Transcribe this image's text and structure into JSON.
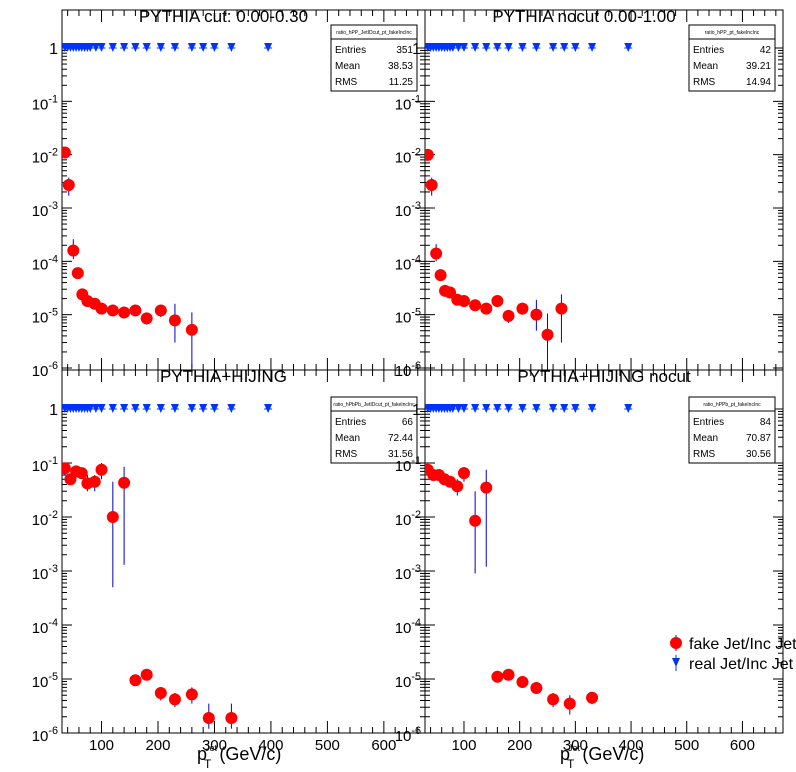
{
  "chart_data": [
    {
      "type": "scatter",
      "title": "PYTHIA cut: 0.00-0.30",
      "ylog": true,
      "yticks": [
        "10^-6",
        "10^-5",
        "10^-4",
        "10^-3",
        "10^-2",
        "10^-1",
        "1"
      ],
      "stats": {
        "name": "ratio_hPP_JetIDcut_pt_fakeIncInc",
        "rows": [
          [
            "Entries",
            "351"
          ],
          [
            "Mean",
            "38.53"
          ],
          [
            "RMS",
            "11.25"
          ]
        ]
      },
      "series": [
        {
          "key": "fake",
          "x": [
            35,
            42,
            50,
            58,
            66,
            75,
            88,
            100,
            120,
            140,
            160,
            180,
            205,
            230,
            260
          ],
          "y": [
            0.011,
            0.0027,
            0.00016,
            6e-05,
            2.4e-05,
            1.8e-05,
            1.6e-05,
            1.3e-05,
            1.2e-05,
            1.1e-05,
            1.2e-05,
            8.5e-06,
            1.2e-05,
            7.8e-06,
            5.2e-06
          ],
          "elo": [
            0.0105,
            0.0017,
            0.00011,
            5e-05,
            2e-05,
            1.6e-05,
            1.4e-05,
            1.1e-05,
            1e-05,
            9.5e-06,
            1e-05,
            6.5e-06,
            9e-06,
            3e-06,
            1e-06
          ],
          "ehi": [
            0.0115,
            0.0037,
            0.00026,
            7e-05,
            2.8e-05,
            2.1e-05,
            1.8e-05,
            1.5e-05,
            1.4e-05,
            1.3e-05,
            1.4e-05,
            1.05e-05,
            1.5e-05,
            1.6e-05,
            1.1e-05
          ]
        },
        {
          "key": "real",
          "x": [
            35,
            40,
            45,
            50,
            55,
            60,
            65,
            70,
            75,
            80,
            90,
            100,
            120,
            140,
            160,
            180,
            205,
            230,
            260,
            280,
            300,
            330,
            395
          ],
          "y": [
            1,
            1,
            1,
            1,
            1,
            1,
            1,
            1,
            1,
            1,
            1,
            1,
            1,
            1,
            1,
            1,
            1,
            1,
            1,
            1,
            1,
            1,
            1
          ]
        }
      ]
    },
    {
      "type": "scatter",
      "title": "PYTHIA nocut 0.00-1.00",
      "ylog": true,
      "yticks": [
        "10^-6",
        "10^-5",
        "10^-4",
        "10^-3",
        "10^-2",
        "10^-1",
        "1"
      ],
      "stats": {
        "name": "ratio_hPP_pt_fakeIncInc",
        "rows": [
          [
            "Entries",
            "42"
          ],
          [
            "Mean",
            "39.21"
          ],
          [
            "RMS",
            "14.94"
          ]
        ]
      },
      "series": [
        {
          "key": "fake",
          "x": [
            35,
            42,
            50,
            58,
            66,
            75,
            88,
            100,
            120,
            140,
            160,
            180,
            205,
            230,
            250,
            275
          ],
          "y": [
            0.0099,
            0.0027,
            0.00014,
            5.5e-05,
            2.8e-05,
            2.6e-05,
            1.9e-05,
            1.8e-05,
            1.5e-05,
            1.3e-05,
            1.8e-05,
            9.5e-06,
            1.3e-05,
            1e-05,
            4.2e-06,
            1.3e-05
          ],
          "elo": [
            0.0094,
            0.0017,
            0.0001,
            4.5e-05,
            2.4e-05,
            2.2e-05,
            1.6e-05,
            1.5e-05,
            1.2e-05,
            1.1e-05,
            1.5e-05,
            7e-06,
            1e-05,
            5e-06,
            8e-07,
            3e-06
          ],
          "ehi": [
            0.0104,
            0.0037,
            0.00021,
            6.8e-05,
            3.2e-05,
            3e-05,
            2.2e-05,
            2.1e-05,
            1.8e-05,
            1.5e-05,
            2.1e-05,
            1.2e-05,
            1.6e-05,
            1.9e-05,
            1.05e-05,
            2.4e-05
          ]
        },
        {
          "key": "real",
          "x": [
            35,
            40,
            45,
            50,
            55,
            60,
            65,
            70,
            75,
            80,
            90,
            100,
            120,
            140,
            160,
            180,
            205,
            230,
            260,
            280,
            300,
            330,
            395
          ],
          "y": [
            1,
            1,
            1,
            1,
            1,
            1,
            1,
            1,
            1,
            1,
            1,
            1,
            1,
            1,
            1,
            1,
            1,
            1,
            1,
            1,
            1,
            1,
            1
          ]
        }
      ]
    },
    {
      "type": "scatter",
      "title": "PYTHIA+HIJING",
      "ylog": true,
      "xlabel": "p_T^{Jet} (GeV/c)",
      "xticks": [
        "100",
        "200",
        "300",
        "400",
        "500",
        "600"
      ],
      "yticks": [
        "10^-6",
        "10^-5",
        "10^-4",
        "10^-3",
        "10^-2",
        "10^-1",
        "1"
      ],
      "stats": {
        "name": "ratio_hPbPb_JetIDcut_pt_fakeIncInc",
        "rows": [
          [
            "Entries",
            "66"
          ],
          [
            "Mean",
            "72.44"
          ],
          [
            "RMS",
            "31.56"
          ]
        ]
      },
      "series": [
        {
          "key": "fake",
          "x": [
            35,
            45,
            55,
            65,
            75,
            88,
            100,
            120,
            140,
            160,
            180,
            205,
            230,
            260,
            290,
            330
          ],
          "y": [
            0.08,
            0.05,
            0.07,
            0.065,
            0.042,
            0.045,
            0.075,
            0.01,
            0.043,
            9.5e-06,
            1.2e-05,
            5.5e-06,
            4.2e-06,
            5.2e-06,
            1.9e-06,
            1.9e-06
          ],
          "elo": [
            0.06,
            0.042,
            0.055,
            0.055,
            0.03,
            0.03,
            0.05,
            0.0005,
            0.0013,
            8.5e-06,
            1.05e-05,
            4e-06,
            3e-06,
            3.5e-06,
            1.2e-06,
            1.2e-06
          ],
          "ehi": [
            0.1,
            0.06,
            0.09,
            0.08,
            0.06,
            0.06,
            0.1,
            0.045,
            0.085,
            1.05e-05,
            1.35e-05,
            7e-06,
            5.5e-06,
            7e-06,
            3.5e-06,
            3.5e-06
          ]
        },
        {
          "key": "real",
          "x": [
            35,
            40,
            45,
            50,
            55,
            60,
            65,
            70,
            75,
            80,
            90,
            100,
            120,
            140,
            160,
            180,
            205,
            230,
            260,
            280,
            300,
            330,
            395
          ],
          "y": [
            1,
            1,
            1,
            1,
            1,
            1,
            1,
            1,
            1,
            1,
            1,
            1,
            1,
            1,
            1,
            1,
            1,
            1,
            1,
            1,
            1,
            1,
            1
          ]
        }
      ]
    },
    {
      "type": "scatter",
      "title": "PYTHIA+HIJING nocut",
      "ylog": true,
      "xlabel": "p_T^{Jet} (GeV/c)",
      "xticks": [
        "100",
        "200",
        "300",
        "400",
        "500",
        "600"
      ],
      "yticks": [
        "10^-6",
        "10^-5",
        "10^-4",
        "10^-3",
        "10^-2",
        "10^-1",
        "1"
      ],
      "stats": {
        "name": "ratio_hPPb_pt_fakeIncInc",
        "rows": [
          [
            "Entries",
            "84"
          ],
          [
            "Mean",
            "70.87"
          ],
          [
            "RMS",
            "30.56"
          ]
        ]
      },
      "series": [
        {
          "key": "fake",
          "x": [
            35,
            45,
            55,
            65,
            75,
            88,
            100,
            120,
            140,
            160,
            180,
            205,
            230,
            260,
            290,
            330
          ],
          "y": [
            0.075,
            0.06,
            0.06,
            0.05,
            0.045,
            0.037,
            0.065,
            0.0085,
            0.035,
            1.1e-05,
            1.2e-05,
            8.8e-06,
            6.8e-06,
            4.2e-06,
            3.5e-06,
            4.5e-06
          ],
          "elo": [
            0.06,
            0.05,
            0.05,
            0.04,
            0.035,
            0.025,
            0.045,
            0.0009,
            0.0012,
            9.5e-06,
            1.05e-05,
            7.2e-06,
            5.4e-06,
            3e-06,
            2.2e-06,
            3.4e-06
          ],
          "ehi": [
            0.09,
            0.07,
            0.07,
            0.06,
            0.055,
            0.05,
            0.085,
            0.03,
            0.075,
            1.25e-05,
            1.35e-05,
            1.04e-05,
            8.2e-06,
            5.5e-06,
            5e-06,
            5.7e-06
          ]
        },
        {
          "key": "real",
          "x": [
            35,
            40,
            45,
            50,
            55,
            60,
            65,
            70,
            75,
            80,
            90,
            100,
            120,
            140,
            160,
            180,
            205,
            230,
            260,
            280,
            300,
            330,
            395
          ],
          "y": [
            1,
            1,
            1,
            1,
            1,
            1,
            1,
            1,
            1,
            1,
            1,
            1,
            1,
            1,
            1,
            1,
            1,
            1,
            1,
            1,
            1,
            1,
            1
          ]
        }
      ]
    }
  ],
  "legend": {
    "placement": "bottom-right",
    "items": [
      {
        "key": "fake",
        "label": "fake Jet/Inc Jet",
        "color": "#ff0000",
        "marker": "circle"
      },
      {
        "key": "real",
        "label": "real Jet/Inc Jet",
        "color": "#0033ff",
        "marker": "triangle-down"
      }
    ]
  },
  "colors": {
    "fake": "#ff0000",
    "fake_err": "#0000cc",
    "real": "#0033ff",
    "frame": "#000000"
  }
}
